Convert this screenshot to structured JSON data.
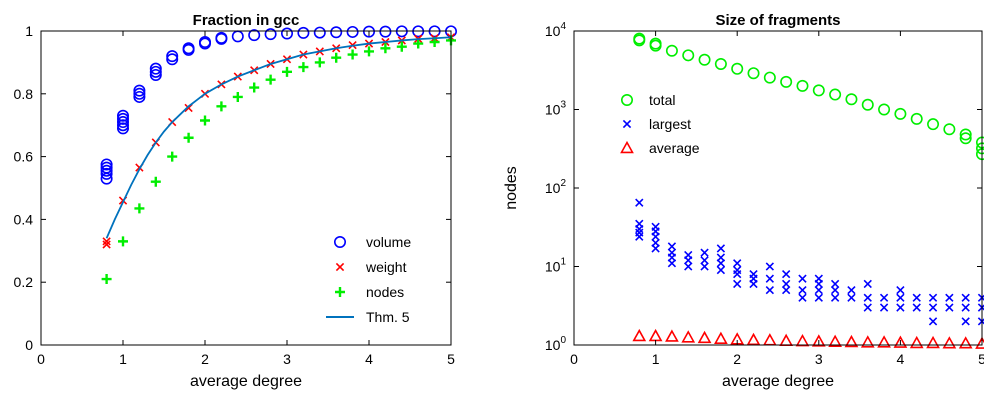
{
  "chart_data": [
    {
      "type": "scatter",
      "title": "Fraction in gcc",
      "xlabel": "average degree",
      "ylabel": "",
      "xlim": [
        0,
        5
      ],
      "ylim": [
        0,
        1
      ],
      "xticks": [
        "0",
        "1",
        "2",
        "3",
        "4",
        "5"
      ],
      "yticks": [
        "0",
        "0.2",
        "0.4",
        "0.6",
        "0.8",
        "1"
      ],
      "legend_position": "bottom-right",
      "series": [
        {
          "name": "volume",
          "marker": "circle",
          "color": "#0000ff",
          "x": [
            0.8,
            0.8,
            0.8,
            0.8,
            0.8,
            1.0,
            1.0,
            1.0,
            1.0,
            1.0,
            1.2,
            1.2,
            1.2,
            1.4,
            1.4,
            1.4,
            1.6,
            1.6,
            1.8,
            1.8,
            2.0,
            2.0,
            2.2,
            2.2,
            2.4,
            2.6,
            2.8,
            3.0,
            3.2,
            3.4,
            3.6,
            3.8,
            4.0,
            4.2,
            4.4,
            4.6,
            4.8,
            5.0
          ],
          "y": [
            0.53,
            0.545,
            0.555,
            0.565,
            0.575,
            0.69,
            0.7,
            0.71,
            0.72,
            0.73,
            0.79,
            0.8,
            0.81,
            0.86,
            0.87,
            0.88,
            0.91,
            0.92,
            0.94,
            0.945,
            0.96,
            0.965,
            0.975,
            0.978,
            0.983,
            0.987,
            0.99,
            0.992,
            0.994,
            0.995,
            0.996,
            0.997,
            0.998,
            0.998,
            0.999,
            0.999,
            0.999,
            0.999
          ]
        },
        {
          "name": "weight",
          "marker": "x",
          "color": "#ff0000",
          "x": [
            0.8,
            0.8,
            1.0,
            1.2,
            1.4,
            1.6,
            1.8,
            2.0,
            2.2,
            2.4,
            2.6,
            2.8,
            3.0,
            3.2,
            3.4,
            3.6,
            3.8,
            4.0,
            4.2,
            4.4,
            4.6,
            4.8,
            5.0
          ],
          "y": [
            0.33,
            0.32,
            0.46,
            0.565,
            0.645,
            0.71,
            0.755,
            0.8,
            0.83,
            0.855,
            0.875,
            0.895,
            0.91,
            0.925,
            0.935,
            0.945,
            0.955,
            0.96,
            0.965,
            0.97,
            0.975,
            0.977,
            0.98
          ]
        },
        {
          "name": "nodes",
          "marker": "plus",
          "color": "#00ee00",
          "x": [
            0.8,
            1.0,
            1.2,
            1.4,
            1.6,
            1.8,
            2.0,
            2.2,
            2.4,
            2.6,
            2.8,
            3.0,
            3.2,
            3.4,
            3.6,
            3.8,
            4.0,
            4.2,
            4.4,
            4.6,
            4.8,
            5.0
          ],
          "y": [
            0.21,
            0.33,
            0.435,
            0.52,
            0.6,
            0.66,
            0.715,
            0.76,
            0.79,
            0.82,
            0.845,
            0.87,
            0.885,
            0.9,
            0.915,
            0.925,
            0.935,
            0.945,
            0.95,
            0.96,
            0.965,
            0.97
          ]
        },
        {
          "name": "Thm. 5",
          "marker": "line",
          "color": "#0072bd",
          "x": [
            0.8,
            0.9,
            1.0,
            1.1,
            1.2,
            1.3,
            1.4,
            1.5,
            1.6,
            1.7,
            1.8,
            1.9,
            2.0,
            2.2,
            2.4,
            2.6,
            2.8,
            3.0,
            3.2,
            3.4,
            3.6,
            3.8,
            4.0,
            4.2,
            4.4,
            4.6,
            4.8,
            5.0
          ],
          "y": [
            0.34,
            0.4,
            0.455,
            0.51,
            0.56,
            0.605,
            0.645,
            0.68,
            0.71,
            0.735,
            0.76,
            0.78,
            0.8,
            0.83,
            0.855,
            0.875,
            0.895,
            0.91,
            0.925,
            0.935,
            0.945,
            0.953,
            0.96,
            0.965,
            0.97,
            0.974,
            0.977,
            0.98
          ]
        }
      ]
    },
    {
      "type": "scatter",
      "title": "Size of fragments",
      "xlabel": "average degree",
      "ylabel": "nodes",
      "xlim": [
        0,
        5
      ],
      "ylim": [
        1,
        10000
      ],
      "yscale": "log",
      "xticks": [
        "0",
        "1",
        "2",
        "3",
        "4",
        "5"
      ],
      "yticks": [
        {
          "base": "10",
          "exp": "0"
        },
        {
          "base": "10",
          "exp": "1"
        },
        {
          "base": "10",
          "exp": "2"
        },
        {
          "base": "10",
          "exp": "3"
        },
        {
          "base": "10",
          "exp": "4"
        }
      ],
      "legend_position": "top-left",
      "series": [
        {
          "name": "total",
          "marker": "circle",
          "color": "#00ee00",
          "x": [
            0.8,
            0.8,
            1.0,
            1.0,
            1.2,
            1.4,
            1.6,
            1.8,
            2.0,
            2.2,
            2.4,
            2.6,
            2.8,
            3.0,
            3.2,
            3.4,
            3.6,
            3.8,
            4.0,
            4.2,
            4.4,
            4.6,
            4.8,
            4.8,
            5.0,
            5.0,
            5.0
          ],
          "y": [
            8000,
            7600,
            6900,
            6500,
            5600,
            4900,
            4300,
            3800,
            3300,
            2900,
            2550,
            2250,
            2000,
            1750,
            1550,
            1350,
            1150,
            1000,
            880,
            760,
            650,
            560,
            480,
            430,
            380,
            320,
            270
          ]
        },
        {
          "name": "largest",
          "marker": "x",
          "color": "#0000ff",
          "x": [
            0.8,
            0.8,
            0.8,
            0.8,
            0.8,
            1.0,
            1.0,
            1.0,
            1.0,
            1.0,
            1.2,
            1.2,
            1.2,
            1.2,
            1.4,
            1.4,
            1.4,
            1.6,
            1.6,
            1.6,
            1.8,
            1.8,
            1.8,
            1.8,
            2.0,
            2.0,
            2.0,
            2.0,
            2.2,
            2.2,
            2.2,
            2.4,
            2.4,
            2.4,
            2.6,
            2.6,
            2.6,
            2.8,
            2.8,
            2.8,
            3.0,
            3.0,
            3.0,
            3.0,
            3.2,
            3.2,
            3.2,
            3.4,
            3.4,
            3.6,
            3.6,
            3.6,
            3.8,
            3.8,
            4.0,
            4.0,
            4.0,
            4.2,
            4.2,
            4.4,
            4.4,
            4.4,
            4.6,
            4.6,
            4.8,
            4.8,
            4.8,
            5.0,
            5.0,
            5.0
          ],
          "y": [
            65,
            35,
            30,
            27,
            24,
            32,
            28,
            24,
            20,
            17,
            18,
            15,
            13,
            11,
            14,
            12,
            10,
            15,
            12,
            10,
            17,
            13,
            11,
            9,
            11,
            9,
            8,
            6,
            8,
            7,
            6,
            10,
            7,
            5,
            8,
            6,
            5,
            7,
            5,
            4,
            7,
            6,
            5,
            4,
            6,
            5,
            4,
            5,
            4,
            6,
            4,
            3,
            4,
            3,
            5,
            4,
            3,
            4,
            3,
            4,
            3,
            2,
            4,
            3,
            4,
            3,
            2,
            4,
            3,
            2
          ]
        },
        {
          "name": "average",
          "marker": "triangle",
          "color": "#ff0000",
          "x": [
            0.8,
            1.0,
            1.2,
            1.4,
            1.6,
            1.8,
            2.0,
            2.2,
            2.4,
            2.6,
            2.8,
            3.0,
            3.2,
            3.4,
            3.6,
            3.8,
            4.0,
            4.2,
            4.4,
            4.6,
            4.8,
            5.0
          ],
          "y": [
            1.3,
            1.3,
            1.28,
            1.25,
            1.23,
            1.2,
            1.18,
            1.16,
            1.15,
            1.13,
            1.12,
            1.11,
            1.1,
            1.09,
            1.08,
            1.08,
            1.07,
            1.06,
            1.06,
            1.05,
            1.05,
            1.04
          ]
        }
      ]
    }
  ]
}
